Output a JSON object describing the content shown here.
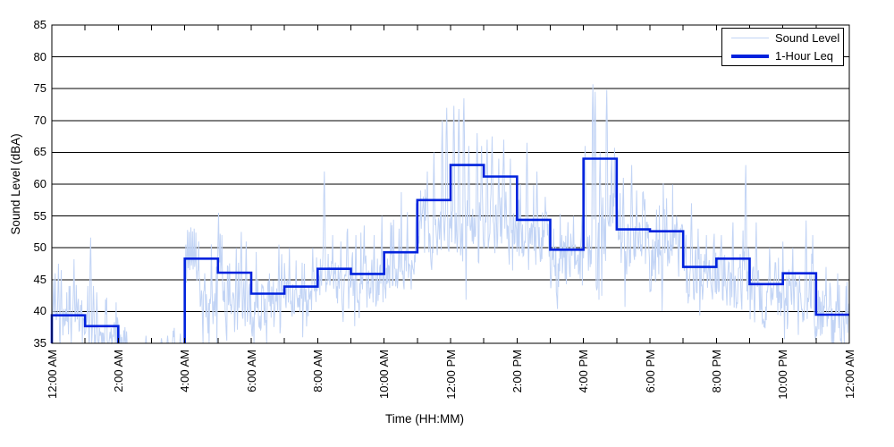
{
  "canvas": {
    "background": "#ffffff"
  },
  "colors": {
    "sound_level_line": "#c2d4f5",
    "leq_line": "#0022dd",
    "grid_line": "#000000",
    "axis_border": "#000000",
    "tick_text": "#000000"
  },
  "chart_data": {
    "type": "line",
    "title": "",
    "xlabel": "Time (HH:MM)",
    "ylabel": "Sound Level (dBA)",
    "ylim": [
      35,
      85
    ],
    "xlim_hours": [
      0,
      24
    ],
    "grid": "horizontal-only",
    "y_ticks": [
      35,
      40,
      45,
      50,
      55,
      60,
      65,
      70,
      75,
      80,
      85
    ],
    "x_ticks_every_hour": true,
    "x_tick_labels": [
      {
        "hour": 0,
        "label": "12:00 AM"
      },
      {
        "hour": 2,
        "label": "2:00 AM"
      },
      {
        "hour": 4,
        "label": "4:00 AM"
      },
      {
        "hour": 6,
        "label": "6:00 AM"
      },
      {
        "hour": 8,
        "label": "8:00 AM"
      },
      {
        "hour": 10,
        "label": "10:00 AM"
      },
      {
        "hour": 12,
        "label": "12:00 PM"
      },
      {
        "hour": 14,
        "label": "2:00 PM"
      },
      {
        "hour": 16,
        "label": "4:00 PM"
      },
      {
        "hour": 18,
        "label": "6:00 PM"
      },
      {
        "hour": 20,
        "label": "8:00 PM"
      },
      {
        "hour": 22,
        "label": "10:00 PM"
      },
      {
        "hour": 24,
        "label": "12:00 AM"
      }
    ],
    "legend": {
      "position": "top-right",
      "entries": [
        {
          "label": "Sound Level",
          "color": "#c2d4f5",
          "line_width": 1.5
        },
        {
          "label": "1-Hour Leq",
          "color": "#0022dd",
          "line_width": 4
        }
      ]
    },
    "series": [
      {
        "name": "1-Hour Leq",
        "type": "hourly-step",
        "units": "dBA",
        "hours": [
          0,
          1,
          2,
          3,
          4,
          5,
          6,
          7,
          8,
          9,
          10,
          11,
          12,
          13,
          14,
          15,
          16,
          17,
          18,
          19,
          20,
          21,
          22,
          23
        ],
        "values": [
          39.4,
          37.7,
          null,
          null,
          48.3,
          46.1,
          42.8,
          43.9,
          46.7,
          45.9,
          49.3,
          57.5,
          63.0,
          61.2,
          54.4,
          49.7,
          64.0,
          52.9,
          52.6,
          47.0,
          48.3,
          44.3,
          46.0,
          39.5
        ]
      },
      {
        "name": "Sound Level",
        "type": "noisy-minute-trace",
        "units": "dBA",
        "sampling_minutes": 1,
        "note": "dense 1-minute trace approximated by per-hour envelope [low,high] plus observed spikes [hour,peak]; values below 35 are clipped at the axis",
        "hourly_envelope": [
          [
            35,
            41
          ],
          [
            33,
            39
          ],
          [
            30,
            34.5
          ],
          [
            30,
            34.8
          ],
          [
            37,
            46
          ],
          [
            37,
            45
          ],
          [
            36,
            44
          ],
          [
            39,
            46
          ],
          [
            41,
            48
          ],
          [
            41,
            49
          ],
          [
            43,
            52
          ],
          [
            47,
            57
          ],
          [
            48,
            58
          ],
          [
            48,
            57
          ],
          [
            47,
            55
          ],
          [
            42,
            51
          ],
          [
            46,
            58
          ],
          [
            45,
            55
          ],
          [
            44,
            54
          ],
          [
            42,
            50
          ],
          [
            41,
            49
          ],
          [
            38,
            47
          ],
          [
            37,
            46
          ],
          [
            34,
            42
          ]
        ],
        "spikes": [
          [
            0.05,
            45
          ],
          [
            0.1,
            46
          ],
          [
            0.2,
            47.5
          ],
          [
            0.28,
            46.5
          ],
          [
            0.45,
            43
          ],
          [
            0.55,
            44
          ],
          [
            0.67,
            48.2
          ],
          [
            0.8,
            42
          ],
          [
            1.08,
            44
          ],
          [
            1.17,
            51.6
          ],
          [
            1.25,
            44
          ],
          [
            1.35,
            43
          ],
          [
            2.1,
            36
          ],
          [
            3.3,
            35.8
          ],
          [
            3.87,
            36.5
          ],
          [
            4.03,
            50.5
          ],
          [
            4.08,
            52.8
          ],
          [
            4.13,
            52.5
          ],
          [
            4.18,
            53.2
          ],
          [
            4.23,
            52.6
          ],
          [
            4.28,
            53
          ],
          [
            4.33,
            52.4
          ],
          [
            4.42,
            51
          ],
          [
            4.6,
            46
          ],
          [
            4.8,
            47
          ],
          [
            5.02,
            55.5
          ],
          [
            5.07,
            52.2
          ],
          [
            5.12,
            52
          ],
          [
            5.3,
            47
          ],
          [
            5.55,
            50
          ],
          [
            5.7,
            52.5
          ],
          [
            5.85,
            51
          ],
          [
            6.2,
            45
          ],
          [
            6.55,
            46
          ],
          [
            6.83,
            50.5
          ],
          [
            6.92,
            49
          ],
          [
            7.15,
            50
          ],
          [
            7.35,
            48
          ],
          [
            7.6,
            47.5
          ],
          [
            7.85,
            50
          ],
          [
            8.2,
            62
          ],
          [
            8.45,
            52
          ],
          [
            8.7,
            51
          ],
          [
            8.9,
            53
          ],
          [
            9.15,
            52
          ],
          [
            9.4,
            53.5
          ],
          [
            9.7,
            52
          ],
          [
            9.93,
            55
          ],
          [
            10.2,
            54
          ],
          [
            10.45,
            53
          ],
          [
            10.7,
            55.6
          ],
          [
            10.97,
            57
          ],
          [
            11.1,
            59
          ],
          [
            11.3,
            62
          ],
          [
            11.5,
            65
          ],
          [
            11.75,
            70
          ],
          [
            11.88,
            72
          ],
          [
            12.1,
            72.3
          ],
          [
            12.25,
            71.8
          ],
          [
            12.4,
            73.5
          ],
          [
            12.55,
            66
          ],
          [
            12.8,
            68
          ],
          [
            12.93,
            66
          ],
          [
            13.1,
            67
          ],
          [
            13.25,
            67.5
          ],
          [
            13.45,
            64
          ],
          [
            13.6,
            67
          ],
          [
            13.8,
            64
          ],
          [
            14.1,
            60
          ],
          [
            14.3,
            66.5
          ],
          [
            14.6,
            62
          ],
          [
            14.85,
            58
          ],
          [
            15.1,
            53
          ],
          [
            15.35,
            52
          ],
          [
            15.7,
            55
          ],
          [
            16.05,
            66
          ],
          [
            16.28,
            75.7
          ],
          [
            16.35,
            74.5
          ],
          [
            16.5,
            65
          ],
          [
            16.7,
            74.8
          ],
          [
            16.85,
            64
          ],
          [
            17.2,
            61
          ],
          [
            17.45,
            63
          ],
          [
            17.6,
            59
          ],
          [
            18.2,
            56
          ],
          [
            18.5,
            57.8
          ],
          [
            18.8,
            55
          ],
          [
            19.25,
            57
          ],
          [
            19.45,
            53
          ],
          [
            19.7,
            52
          ],
          [
            20.15,
            52
          ],
          [
            20.5,
            54
          ],
          [
            20.88,
            63
          ],
          [
            21.2,
            54
          ],
          [
            21.6,
            50
          ],
          [
            22.3,
            50
          ],
          [
            22.7,
            54.3
          ],
          [
            22.9,
            52
          ],
          [
            23.3,
            47
          ],
          [
            23.65,
            46
          ],
          [
            23.9,
            44
          ]
        ]
      }
    ]
  }
}
